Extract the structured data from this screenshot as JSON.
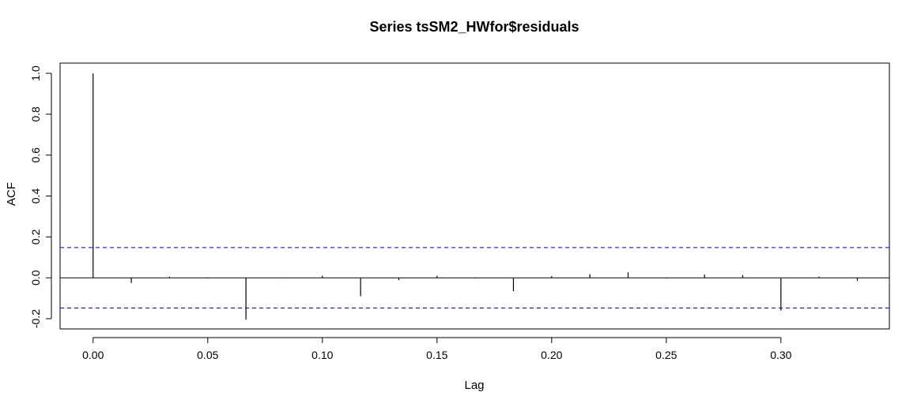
{
  "chart_data": {
    "type": "bar",
    "title": "Series  tsSM2_HWfor$residuals",
    "xlabel": "Lag",
    "ylabel": "ACF",
    "xlim": [
      -0.0144,
      0.3473
    ],
    "ylim": [
      -0.25,
      1.05
    ],
    "x_ticks": [
      0.0,
      0.05,
      0.1,
      0.15,
      0.2,
      0.25,
      0.3
    ],
    "x_tick_labels": [
      "0.00",
      "0.05",
      "0.10",
      "0.15",
      "0.20",
      "0.25",
      "0.30"
    ],
    "y_ticks": [
      -0.2,
      0.0,
      0.2,
      0.4,
      0.6,
      0.8,
      1.0
    ],
    "y_tick_labels": [
      "-0.2",
      "0.0",
      "0.2",
      "0.4",
      "0.6",
      "0.8",
      "1.0"
    ],
    "lags": [
      0.0,
      0.01667,
      0.03333,
      0.05,
      0.06667,
      0.08333,
      0.1,
      0.11667,
      0.13333,
      0.15,
      0.16667,
      0.18333,
      0.2,
      0.21667,
      0.23333,
      0.25,
      0.26667,
      0.28333,
      0.3,
      0.31667,
      0.33333
    ],
    "acf": [
      1.0,
      -0.025,
      0.005,
      -0.003,
      -0.205,
      -0.002,
      0.01,
      -0.09,
      -0.012,
      0.01,
      -0.003,
      -0.065,
      0.008,
      0.018,
      0.027,
      -0.003,
      0.016,
      0.013,
      -0.16,
      0.005,
      -0.015
    ],
    "confidence_bound": 0.148,
    "grid": false,
    "colors": {
      "bars": "#000000",
      "zero_line": "#000000",
      "confidence": "#0000cc",
      "frame": "#000000"
    }
  }
}
